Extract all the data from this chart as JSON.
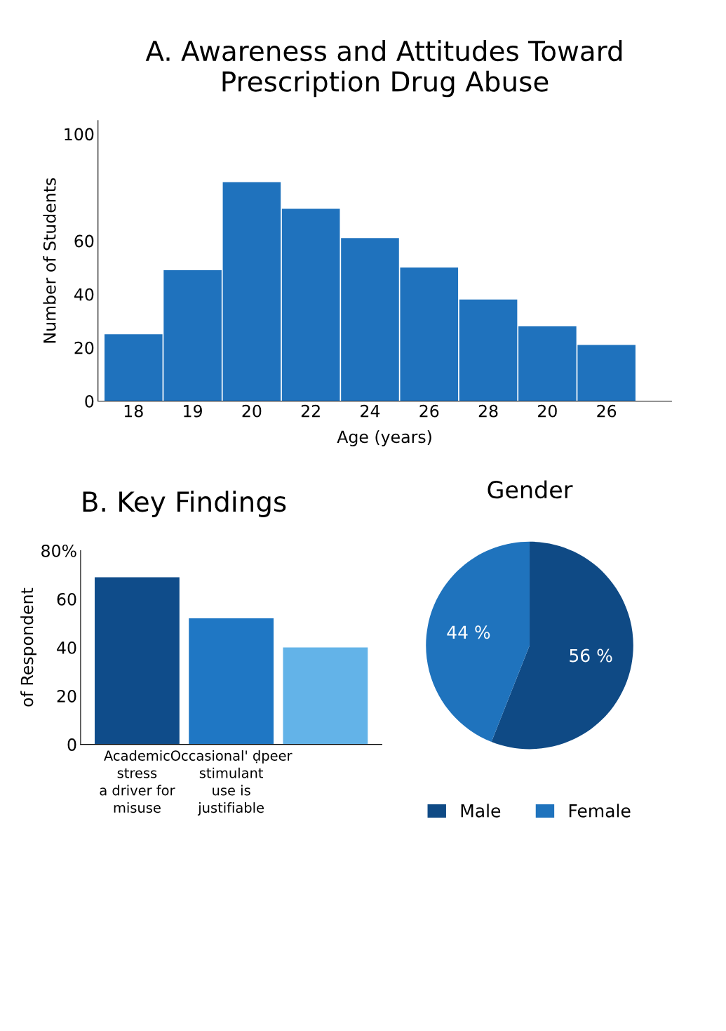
{
  "chart_data": [
    {
      "type": "bar",
      "title": "A. Awareness and Attitudes Toward\nPrescription Drug Abuse",
      "xlabel": "Age (years)",
      "ylabel": "Number of Students",
      "categories": [
        "18",
        "19",
        "20",
        "22",
        "24",
        "26",
        "28",
        "20",
        "26"
      ],
      "values": [
        25,
        49,
        82,
        72,
        61,
        50,
        38,
        28,
        21
      ],
      "color": "#1f72bd",
      "ylim": [
        0,
        105
      ],
      "yticks": [
        0,
        20,
        40,
        60,
        100
      ],
      "grid": false,
      "legend": false
    },
    {
      "type": "bar",
      "title": "B. Key Findings",
      "ylabel": "of Respondent",
      "categories": [
        "Academic\nstress\na driver for\nmisuse",
        "Occasional' ḍpeer\nstimulant\nuse is\njustifiable",
        null
      ],
      "values": [
        69,
        52,
        40
      ],
      "colors": [
        "#0f4c8a",
        "#1f77c4",
        "#63b3e8"
      ],
      "ylim": [
        0,
        80
      ],
      "yticks": [
        0,
        20,
        40,
        60,
        {
          "value": 80,
          "label": "80%"
        }
      ],
      "grid": false,
      "legend": false
    },
    {
      "type": "pie",
      "title": "Gender",
      "categories": [
        "Male",
        "Female"
      ],
      "values": [
        56,
        44
      ],
      "colors": [
        "#0f4a85",
        "#1f73bd"
      ],
      "value_labels": [
        "56 %",
        "44 %"
      ],
      "legend": "bottom"
    }
  ]
}
